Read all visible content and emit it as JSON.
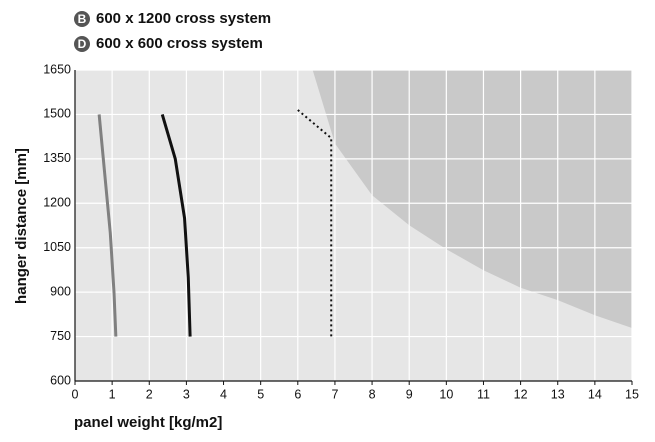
{
  "chart_data": {
    "type": "line",
    "legend": [
      {
        "badge": "B",
        "label": "600 x 1200 cross system"
      },
      {
        "badge": "D",
        "label": "600 x 600 cross system"
      }
    ],
    "xlabel": "panel weight [kg/m2]",
    "ylabel": "hanger distance [mm]",
    "xlim": [
      0,
      15
    ],
    "ylim": [
      600,
      1650
    ],
    "xticks": [
      0,
      1,
      2,
      3,
      4,
      5,
      6,
      7,
      8,
      9,
      10,
      11,
      12,
      13,
      14,
      15
    ],
    "yticks": [
      600,
      750,
      900,
      1050,
      1200,
      1350,
      1500,
      1650
    ],
    "grid": true,
    "shaded_area": {
      "color": "#c9c9c9",
      "x": [
        6.4,
        7,
        8,
        9,
        10,
        11,
        12,
        13,
        14,
        15
      ],
      "values": [
        1650,
        1402,
        1227,
        1126,
        1045,
        974,
        915,
        873,
        822,
        779
      ]
    },
    "series": [
      {
        "color": "#808080",
        "style": "solid",
        "x": [
          0.65,
          0.8,
          0.95,
          1.05,
          1.1
        ],
        "values": [
          1500,
          1300,
          1100,
          900,
          750
        ]
      },
      {
        "color": "#111111",
        "style": "solid",
        "x": [
          2.35,
          2.7,
          2.95,
          3.05,
          3.1
        ],
        "values": [
          1500,
          1350,
          1150,
          950,
          750
        ]
      },
      {
        "color": "#111111",
        "style": "dotted",
        "x": [
          6.0,
          6.9,
          6.9
        ],
        "values": [
          1515,
          1420,
          750
        ]
      }
    ]
  }
}
